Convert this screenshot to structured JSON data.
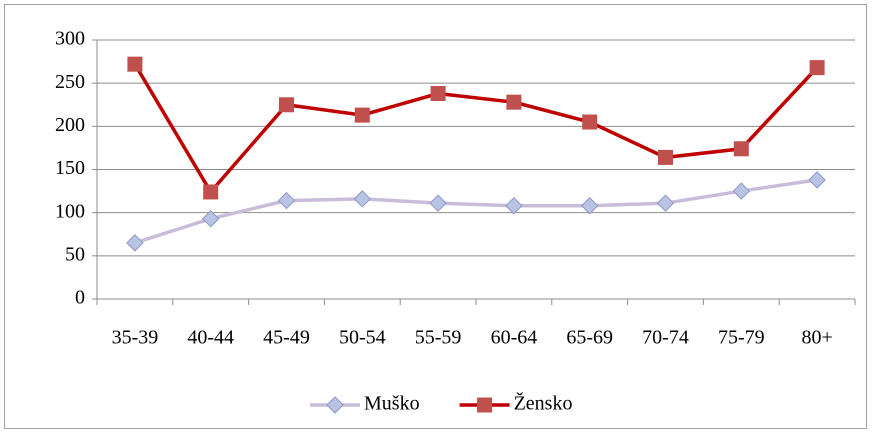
{
  "chart_data": {
    "type": "line",
    "categories": [
      "35-39",
      "40-44",
      "45-49",
      "50-54",
      "55-59",
      "60-64",
      "65-69",
      "70-74",
      "75-79",
      "80+"
    ],
    "series": [
      {
        "name": "Muško",
        "color": "#c9bcd9",
        "marker": "diamond",
        "marker_color": "#b9c3e3",
        "values": [
          65,
          93,
          114,
          116,
          111,
          108,
          108,
          111,
          125,
          138
        ]
      },
      {
        "name": "Žensko",
        "color": "#c00000",
        "marker": "square",
        "marker_color": "#c0504d",
        "values": [
          272,
          124,
          225,
          213,
          238,
          228,
          205,
          164,
          174,
          268
        ]
      }
    ],
    "ylim": [
      0,
      300
    ],
    "yticks": [
      0,
      50,
      100,
      150,
      200,
      250,
      300
    ],
    "grid": true,
    "legend": "bottom"
  }
}
